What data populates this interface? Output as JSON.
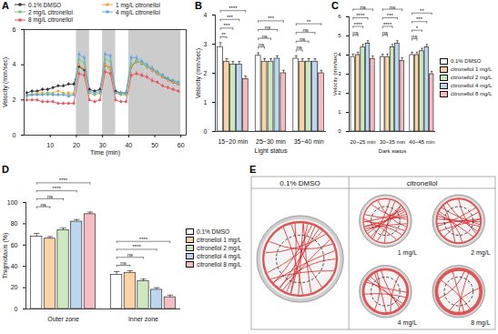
{
  "chart_data": [
    {
      "title": "A",
      "type": "line",
      "xlabel": "Time (min)",
      "ylabel": "Velocity (mm/sec)",
      "x": [
        1,
        3,
        5,
        7,
        9,
        11,
        13,
        15,
        17,
        19,
        21,
        23,
        25,
        27,
        29,
        31,
        33,
        35,
        37,
        39,
        41,
        43,
        45,
        47,
        49,
        51,
        53,
        55,
        57,
        59
      ],
      "xlim": [
        0,
        62
      ],
      "xticks": [
        10,
        20,
        30,
        40,
        50,
        60
      ],
      "ylim": [
        0,
        6
      ],
      "yticks": [
        0,
        2,
        4,
        6
      ],
      "dark_periods": [
        [
          20,
          25
        ],
        [
          30,
          35
        ],
        [
          40,
          60
        ]
      ],
      "legend": "top-left",
      "marker": "circle",
      "series": [
        {
          "name": "0.1% DMSO",
          "color": "#333333",
          "values": [
            2.4,
            2.5,
            2.5,
            2.6,
            2.6,
            2.7,
            2.8,
            2.8,
            2.9,
            2.9,
            3.9,
            3.7,
            2.6,
            2.5,
            2.6,
            4.0,
            3.8,
            2.5,
            2.4,
            2.4,
            3.9,
            4.2,
            4.1,
            3.9,
            3.7,
            3.5,
            3.3,
            3.2,
            3.0,
            2.9
          ],
          "errors": [
            0.1,
            0.1,
            0.1,
            0.1,
            0.1,
            0.1,
            0.1,
            0.1,
            0.1,
            0.1,
            0.15,
            0.15,
            0.1,
            0.1,
            0.1,
            0.15,
            0.15,
            0.1,
            0.1,
            0.1,
            0.15,
            0.15,
            0.15,
            0.15,
            0.15,
            0.1,
            0.1,
            0.1,
            0.1,
            0.1
          ]
        },
        {
          "name": "1 mg/L citronellol",
          "color": "#f5a04a",
          "values": [
            2.3,
            2.3,
            2.4,
            2.4,
            2.4,
            2.4,
            2.5,
            2.4,
            2.4,
            2.4,
            4.0,
            3.8,
            2.4,
            2.3,
            2.4,
            4.0,
            3.8,
            2.4,
            2.3,
            2.3,
            3.9,
            4.2,
            4.1,
            3.9,
            3.7,
            3.5,
            3.3,
            3.1,
            3.0,
            2.9
          ],
          "errors": [
            0.1,
            0.1,
            0.1,
            0.1,
            0.1,
            0.1,
            0.1,
            0.1,
            0.1,
            0.1,
            0.15,
            0.15,
            0.1,
            0.1,
            0.1,
            0.15,
            0.15,
            0.1,
            0.1,
            0.1,
            0.15,
            0.15,
            0.15,
            0.15,
            0.15,
            0.1,
            0.1,
            0.1,
            0.1,
            0.1
          ]
        },
        {
          "name": "2 mg/L citronellol",
          "color": "#7cc576",
          "values": [
            2.2,
            2.3,
            2.3,
            2.3,
            2.4,
            2.3,
            2.3,
            2.3,
            2.3,
            2.3,
            4.3,
            4.1,
            2.4,
            2.3,
            2.4,
            4.3,
            4.2,
            2.4,
            2.3,
            2.3,
            4.0,
            4.2,
            4.1,
            3.9,
            3.8,
            3.6,
            3.4,
            3.2,
            3.1,
            3.0
          ],
          "errors": [
            0.1,
            0.1,
            0.1,
            0.1,
            0.1,
            0.1,
            0.1,
            0.1,
            0.1,
            0.1,
            0.15,
            0.15,
            0.1,
            0.1,
            0.1,
            0.15,
            0.15,
            0.1,
            0.1,
            0.1,
            0.15,
            0.15,
            0.15,
            0.15,
            0.15,
            0.1,
            0.1,
            0.1,
            0.1,
            0.1
          ]
        },
        {
          "name": "4 mg/L citronellol",
          "color": "#5aa9e6",
          "values": [
            2.3,
            2.3,
            2.3,
            2.3,
            2.3,
            2.3,
            2.3,
            2.3,
            2.2,
            2.3,
            4.6,
            4.4,
            2.5,
            2.4,
            2.5,
            4.6,
            4.5,
            2.4,
            2.4,
            2.4,
            4.4,
            4.4,
            4.2,
            4.0,
            3.8,
            3.6,
            3.4,
            3.2,
            3.1,
            3.0
          ],
          "errors": [
            0.1,
            0.1,
            0.1,
            0.1,
            0.1,
            0.1,
            0.1,
            0.1,
            0.1,
            0.1,
            0.15,
            0.15,
            0.1,
            0.1,
            0.1,
            0.15,
            0.15,
            0.1,
            0.1,
            0.1,
            0.15,
            0.15,
            0.15,
            0.15,
            0.15,
            0.1,
            0.1,
            0.1,
            0.1,
            0.1
          ]
        },
        {
          "name": "8 mg/L citronellol",
          "color": "#e8505b",
          "values": [
            2.0,
            2.0,
            2.0,
            1.9,
            1.9,
            1.9,
            1.8,
            1.8,
            1.8,
            1.8,
            3.5,
            3.4,
            2.0,
            1.9,
            2.0,
            3.6,
            3.5,
            2.0,
            1.9,
            1.9,
            3.4,
            3.5,
            3.4,
            3.3,
            3.1,
            3.0,
            2.8,
            2.7,
            2.6,
            2.5
          ],
          "errors": [
            0.1,
            0.1,
            0.1,
            0.1,
            0.1,
            0.1,
            0.1,
            0.1,
            0.1,
            0.1,
            0.15,
            0.15,
            0.1,
            0.1,
            0.1,
            0.15,
            0.15,
            0.1,
            0.1,
            0.1,
            0.15,
            0.15,
            0.15,
            0.15,
            0.15,
            0.1,
            0.1,
            0.1,
            0.1,
            0.1
          ]
        }
      ]
    },
    {
      "title": "B",
      "type": "bar",
      "xlabel": "Light status",
      "ylabel": "Velocity (mm/sec)",
      "categories": [
        "15~20 min",
        "25~30 min",
        "35~40 min"
      ],
      "ylim": [
        0,
        4
      ],
      "yticks": [
        0,
        1,
        2,
        3,
        4
      ],
      "series": [
        {
          "name": "0.1% DMSO",
          "color": "#ffffff",
          "values": [
            2.9,
            2.6,
            2.5
          ],
          "errors": [
            0.15,
            0.1,
            0.1
          ]
        },
        {
          "name": "citronellol 1 mg/L",
          "color": "#f9d2a8",
          "values": [
            2.4,
            2.4,
            2.4
          ],
          "errors": [
            0.1,
            0.1,
            0.1
          ]
        },
        {
          "name": "citronellol 2 mg/L",
          "color": "#cde8bf",
          "values": [
            2.3,
            2.4,
            2.4
          ],
          "errors": [
            0.1,
            0.1,
            0.1
          ]
        },
        {
          "name": "citronellol 4 mg/L",
          "color": "#bcd6f0",
          "values": [
            2.3,
            2.5,
            2.4
          ],
          "errors": [
            0.1,
            0.1,
            0.1
          ]
        },
        {
          "name": "citronellol 8 mg/L",
          "color": "#f4bcc3",
          "values": [
            1.8,
            2.0,
            2.0
          ],
          "errors": [
            0.1,
            0.1,
            0.1
          ]
        }
      ],
      "significance": [
        {
          "category": "15~20 min",
          "compare": "citronellol 1 mg/L",
          "label": "**"
        },
        {
          "category": "15~20 min",
          "compare": "citronellol 2 mg/L",
          "label": "***"
        },
        {
          "category": "15~20 min",
          "compare": "citronellol 4 mg/L",
          "label": "***"
        },
        {
          "category": "15~20 min",
          "compare": "citronellol 8 mg/L",
          "label": "****"
        },
        {
          "category": "25~30 min",
          "compare": "citronellol 1 mg/L",
          "label": "ns"
        },
        {
          "category": "25~30 min",
          "compare": "citronellol 2 mg/L",
          "label": "ns"
        },
        {
          "category": "25~30 min",
          "compare": "citronellol 4 mg/L",
          "label": "ns"
        },
        {
          "category": "25~30 min",
          "compare": "citronellol 8 mg/L",
          "label": "***"
        },
        {
          "category": "35~40 min",
          "compare": "citronellol 1 mg/L",
          "label": "ns"
        },
        {
          "category": "35~40 min",
          "compare": "citronellol 2 mg/L",
          "label": "ns"
        },
        {
          "category": "35~40 min",
          "compare": "citronellol 4 mg/L",
          "label": "ns"
        },
        {
          "category": "35~40 min",
          "compare": "citronellol 8 mg/L",
          "label": "**"
        }
      ]
    },
    {
      "title": "C",
      "type": "bar",
      "xlabel": "Dark status",
      "ylabel": "Velocity (mm/sec)",
      "categories": [
        "20~25 min",
        "30~35 min",
        "40~45 min"
      ],
      "ylim": [
        0,
        6
      ],
      "yticks": [
        0,
        1,
        2,
        3,
        4,
        5,
        6
      ],
      "legend": "right",
      "series": [
        {
          "name": "0.1% DMSO",
          "color": "#ffffff",
          "values": [
            3.9,
            3.9,
            4.0
          ],
          "errors": [
            0.15,
            0.15,
            0.15
          ]
        },
        {
          "name": "citronellol 1 mg/L",
          "color": "#f9d2a8",
          "values": [
            4.0,
            3.9,
            4.0
          ],
          "errors": [
            0.15,
            0.15,
            0.15
          ]
        },
        {
          "name": "citronellol 2 mg/L",
          "color": "#cde8bf",
          "values": [
            4.4,
            4.4,
            4.2
          ],
          "errors": [
            0.15,
            0.15,
            0.15
          ]
        },
        {
          "name": "citronellol 4 mg/L",
          "color": "#bcd6f0",
          "values": [
            4.6,
            4.6,
            4.4
          ],
          "errors": [
            0.15,
            0.15,
            0.15
          ]
        },
        {
          "name": "citronellol 8 mg/L",
          "color": "#f4bcc3",
          "values": [
            3.8,
            3.7,
            3.0
          ],
          "errors": [
            0.15,
            0.15,
            0.15
          ]
        }
      ],
      "significance": [
        {
          "category": "20~25 min",
          "compare": "citronellol 1 mg/L",
          "label": "ns"
        },
        {
          "category": "20~25 min",
          "compare": "citronellol 2 mg/L",
          "label": "****"
        },
        {
          "category": "20~25 min",
          "compare": "citronellol 4 mg/L",
          "label": "****"
        },
        {
          "category": "20~25 min",
          "compare": "citronellol 8 mg/L",
          "label": "ns"
        },
        {
          "category": "30~35 min",
          "compare": "citronellol 1 mg/L",
          "label": "ns"
        },
        {
          "category": "30~35 min",
          "compare": "citronellol 2 mg/L",
          "label": "****"
        },
        {
          "category": "30~35 min",
          "compare": "citronellol 4 mg/L",
          "label": "***"
        },
        {
          "category": "30~35 min",
          "compare": "citronellol 8 mg/L",
          "label": "ns"
        },
        {
          "category": "40~45 min",
          "compare": "citronellol 1 mg/L",
          "label": "ns"
        },
        {
          "category": "40~45 min",
          "compare": "citronellol 2 mg/L",
          "label": "*"
        },
        {
          "category": "40~45 min",
          "compare": "citronellol 4 mg/L",
          "label": "***"
        },
        {
          "category": "40~45 min",
          "compare": "citronellol 8 mg/L",
          "label": "**"
        }
      ]
    },
    {
      "title": "D",
      "type": "bar",
      "ylabel": "Thigmotaxis (%)",
      "categories": [
        "Outer zone",
        "Inner zone"
      ],
      "ylim": [
        0,
        100
      ],
      "yticks": [
        0,
        20,
        40,
        60,
        80,
        100
      ],
      "legend": "right",
      "series": [
        {
          "name": "0.1% DMSO",
          "color": "#ffffff",
          "values": [
            68,
            32
          ],
          "errors": [
            3,
            3
          ]
        },
        {
          "name": "citronellol 1 mg/L",
          "color": "#f9d2a8",
          "values": [
            66,
            34
          ],
          "errors": [
            2,
            2
          ]
        },
        {
          "name": "citronellol 2 mg/L",
          "color": "#cde8bf",
          "values": [
            74,
            26
          ],
          "errors": [
            2,
            2
          ]
        },
        {
          "name": "citronellol 4 mg/L",
          "color": "#bcd6f0",
          "values": [
            82,
            18
          ],
          "errors": [
            2,
            2
          ]
        },
        {
          "name": "citronellol 8 mg/L",
          "color": "#f4bcc3",
          "values": [
            89,
            11
          ],
          "errors": [
            2,
            2
          ]
        }
      ],
      "significance": [
        {
          "category": "Outer zone",
          "compare": "citronellol 1 mg/L",
          "label": "ns"
        },
        {
          "category": "Outer zone",
          "compare": "citronellol 2 mg/L",
          "label": "ns"
        },
        {
          "category": "Outer zone",
          "compare": "citronellol 4 mg/L",
          "label": "****"
        },
        {
          "category": "Outer zone",
          "compare": "citronellol 8 mg/L",
          "label": "****"
        },
        {
          "category": "Inner zone",
          "compare": "citronellol 1 mg/L",
          "label": "ns"
        },
        {
          "category": "Inner zone",
          "compare": "citronellol 2 mg/L",
          "label": "ns"
        },
        {
          "category": "Inner zone",
          "compare": "citronellol 4 mg/L",
          "label": "****"
        },
        {
          "category": "Inner zone",
          "compare": "citronellol 8 mg/L",
          "label": "****"
        }
      ]
    }
  ],
  "image_panel": {
    "title": "E",
    "columns": [
      "0.1% DMSO",
      "citronellol"
    ],
    "dish_labels": [
      "1 mg/L",
      "2 mg/L",
      "4 mg/L",
      "8 mg/L"
    ]
  }
}
